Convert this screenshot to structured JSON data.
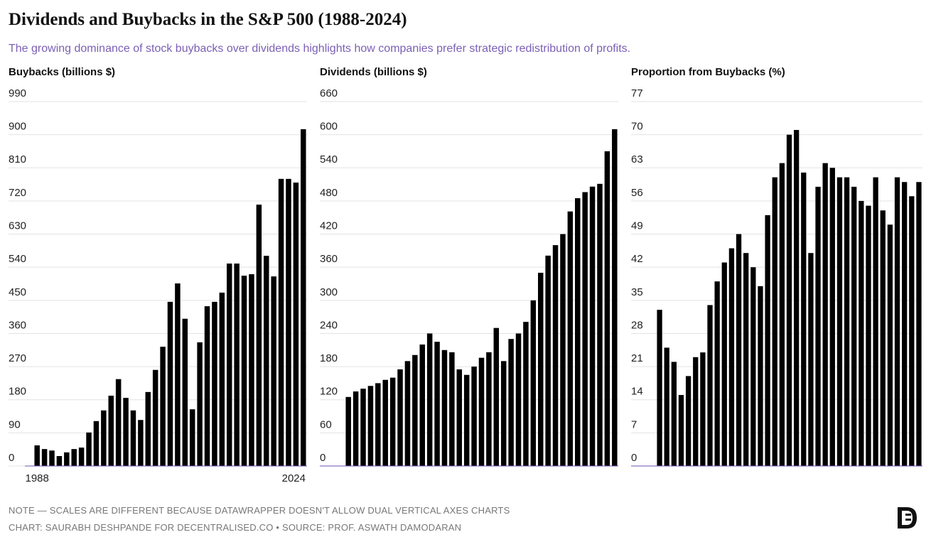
{
  "title": "Dividends and Buybacks in the S&P 500 (1988-2024)",
  "subtitle": "The growing dominance of stock buybacks over dividends highlights how companies prefer strategic redistribution of profits.",
  "chart_data": [
    {
      "type": "bar",
      "ylabel": "Buybacks (billions $)",
      "color": "#000000",
      "grid": true,
      "categories": [
        "1988",
        null,
        null,
        null,
        null,
        null,
        null,
        null,
        null,
        null,
        null,
        null,
        null,
        null,
        null,
        null,
        null,
        null,
        null,
        null,
        null,
        null,
        null,
        null,
        null,
        null,
        null,
        null,
        null,
        null,
        null,
        null,
        null,
        null,
        null,
        null,
        "2024"
      ],
      "values": [
        56,
        46,
        42,
        27,
        37,
        46,
        50,
        91,
        122,
        151,
        191,
        236,
        185,
        151,
        125,
        201,
        261,
        324,
        446,
        496,
        400,
        154,
        336,
        434,
        446,
        471,
        550,
        550,
        517,
        521,
        710,
        571,
        515,
        780,
        780,
        770,
        915
      ],
      "ylim": [
        0,
        990
      ],
      "yticks": [
        0,
        90,
        180,
        270,
        360,
        450,
        540,
        630,
        720,
        810,
        900,
        990
      ]
    },
    {
      "type": "bar",
      "ylabel": "Dividends (billions $)",
      "color": "#000000",
      "grid": true,
      "values": [
        125,
        135,
        140,
        145,
        150,
        156,
        160,
        175,
        190,
        201,
        220,
        240,
        225,
        210,
        206,
        175,
        165,
        180,
        196,
        206,
        250,
        190,
        230,
        240,
        261,
        300,
        350,
        381,
        400,
        420,
        461,
        485,
        496,
        506,
        511,
        570,
        610
      ],
      "ylim": [
        0,
        660
      ],
      "yticks": [
        0,
        60,
        120,
        180,
        240,
        300,
        360,
        420,
        480,
        540,
        600,
        660
      ]
    },
    {
      "type": "bar",
      "ylabel": "Proportion from Buybacks (%)",
      "color": "#000000",
      "grid": true,
      "values": [
        33,
        25,
        22,
        15,
        19,
        23,
        24,
        34,
        39,
        43,
        46,
        49,
        45,
        42,
        38,
        53,
        61,
        64,
        70,
        71,
        62,
        45,
        59,
        64,
        63,
        61,
        61,
        59,
        56,
        55,
        61,
        54,
        51,
        61,
        60,
        57,
        60
      ],
      "ylim": [
        0,
        77
      ],
      "yticks": [
        0,
        7,
        14,
        21,
        28,
        35,
        42,
        49,
        56,
        63,
        70,
        77
      ]
    }
  ],
  "notes": [
    "NOTE — SCALES ARE DIFFERENT BECAUSE DATAWRAPPER DOESN'T ALLOW DUAL VERTICAL AXES CHARTS",
    "CHART: SAURABH DESHPANDE FOR DECENTRALISED.CO • SOURCE: PROF. ASWATH DAMODARAN"
  ]
}
